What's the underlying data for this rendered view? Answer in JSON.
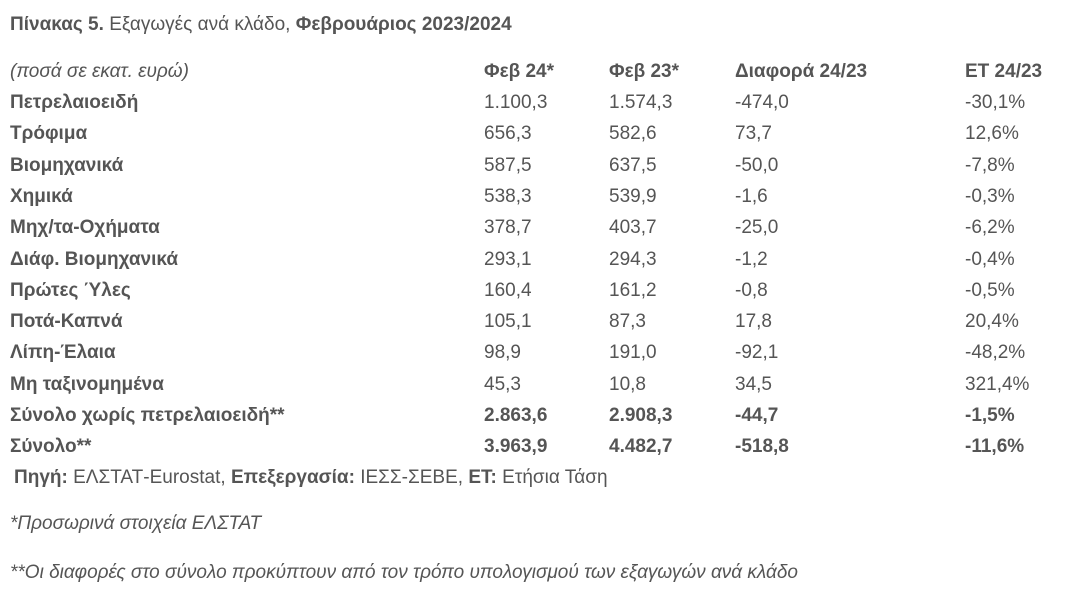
{
  "title": {
    "label": "Πίνακας 5.",
    "text": "Εξαγωγές ανά κλάδο,",
    "period": "Φεβρουάριος 2023/2024"
  },
  "table": {
    "header": [
      "(ποσά σε εκατ. ευρώ)",
      "Φεβ 24*",
      "Φεβ 23*",
      "Διαφορά 24/23",
      "ΕΤ 24/23"
    ],
    "rows": [
      {
        "cells": [
          "Πετρελαιοειδή",
          "1.100,3",
          "1.574,3",
          "-474,0",
          "-30,1%"
        ],
        "bold": false
      },
      {
        "cells": [
          "Τρόφιμα",
          "656,3",
          "582,6",
          "73,7",
          "12,6%"
        ],
        "bold": false
      },
      {
        "cells": [
          "Βιομηχανικά",
          "587,5",
          "637,5",
          "-50,0",
          "-7,8%"
        ],
        "bold": false
      },
      {
        "cells": [
          "Χημικά",
          "538,3",
          "539,9",
          "-1,6",
          "-0,3%"
        ],
        "bold": false
      },
      {
        "cells": [
          "Μηχ/τα-Οχήματα",
          "378,7",
          "403,7",
          "-25,0",
          "-6,2%"
        ],
        "bold": false
      },
      {
        "cells": [
          "Διάφ. Βιομηχανικά",
          "293,1",
          "294,3",
          "-1,2",
          "-0,4%"
        ],
        "bold": false
      },
      {
        "cells": [
          "Πρώτες Ύλες",
          "160,4",
          "161,2",
          "-0,8",
          "-0,5%"
        ],
        "bold": false
      },
      {
        "cells": [
          "Ποτά-Καπνά",
          "105,1",
          "87,3",
          "17,8",
          "20,4%"
        ],
        "bold": false
      },
      {
        "cells": [
          "Λίπη-Έλαια",
          "98,9",
          "191,0",
          "-92,1",
          "-48,2%"
        ],
        "bold": false
      },
      {
        "cells": [
          "Μη ταξινομημένα",
          "45,3",
          "10,8",
          "34,5",
          "321,4%"
        ],
        "bold": false
      },
      {
        "cells": [
          "Σύνολο χωρίς πετρελαιοειδή**",
          "2.863,6",
          "2.908,3",
          "-44,7",
          "-1,5%"
        ],
        "bold": true
      },
      {
        "cells": [
          "Σύνολο**",
          "3.963,9",
          "4.482,7",
          "-518,8",
          "-11,6%"
        ],
        "bold": true
      }
    ]
  },
  "source": [
    {
      "label": "Πηγή:",
      "text": "ΕΛΣΤΑΤ-Eurostat,"
    },
    {
      "label": "Επεξεργασία:",
      "text": "ΙΕΣΣ-ΣΕΒΕ,"
    },
    {
      "label": "ΕΤ:",
      "text": "Ετήσια Τάση"
    }
  ],
  "notes": [
    "*Προσωρινά στοιχεία ΕΛΣΤΑΤ",
    "**Οι διαφορές στο σύνολο προκύπτουν από τον τρόπο υπολογισμού των εξαγωγών ανά κλάδο"
  ]
}
